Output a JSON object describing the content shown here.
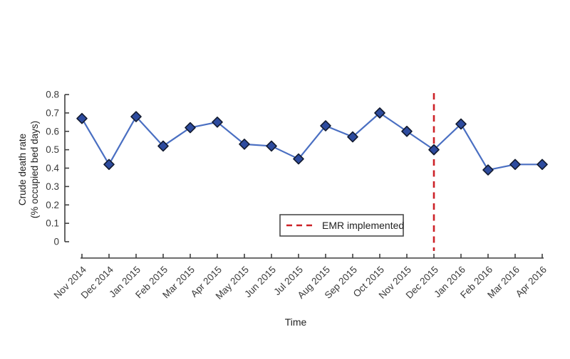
{
  "colors": {
    "background": "#ffffff",
    "axis": "#3f3f3f",
    "tick_label": "#3a3a3a",
    "axis_title": "#222222",
    "line": "#4a6fc2",
    "marker_fill": "#2d4b9e",
    "marker_stroke": "#121a2e",
    "annotation_red": "#cc2127",
    "legend_border": "#4a4a4a",
    "legend_bg": "#ffffff"
  },
  "chart_data": {
    "type": "line",
    "title": "",
    "xlabel": "Time",
    "ylabel_lines": [
      "Crude death rate",
      "(% occupied bed days)"
    ],
    "categories": [
      "Nov 2014",
      "Dec 2014",
      "Jan 2015",
      "Feb 2015",
      "Mar 2015",
      "Apr 2015",
      "May 2015",
      "Jun 2015",
      "Jul 2015",
      "Aug 2015",
      "Sep 2015",
      "Oct 2015",
      "Nov 2015",
      "Dec 2015",
      "Jan 2016",
      "Feb 2016",
      "Mar 2016",
      "Apr 2016"
    ],
    "series": [
      {
        "name": "Crude death rate",
        "values": [
          0.67,
          0.42,
          0.68,
          0.52,
          0.62,
          0.65,
          0.53,
          0.52,
          0.45,
          0.63,
          0.57,
          0.7,
          0.6,
          0.5,
          0.64,
          0.39,
          0.42,
          0.42
        ]
      }
    ],
    "ylim": [
      0,
      0.8
    ],
    "yticks": [
      {
        "value": 0.0,
        "label": "0"
      },
      {
        "value": 0.1,
        "label": "0.1"
      },
      {
        "value": 0.2,
        "label": "0.2"
      },
      {
        "value": 0.3,
        "label": "0.3"
      },
      {
        "value": 0.4,
        "label": "0.4"
      },
      {
        "value": 0.5,
        "label": "0.5"
      },
      {
        "value": 0.6,
        "label": "0.6"
      },
      {
        "value": 0.7,
        "label": "0.7"
      },
      {
        "value": 0.8,
        "label": "0.8"
      }
    ],
    "grid": false,
    "marker": {
      "shape": "diamond"
    },
    "annotations": [
      {
        "type": "vline",
        "category": "Dec 2015",
        "style": "dashed"
      }
    ],
    "legend": {
      "position": "inside-bottom-center",
      "entries": [
        {
          "label": "EMR implemented",
          "style": "dashed"
        }
      ]
    }
  }
}
